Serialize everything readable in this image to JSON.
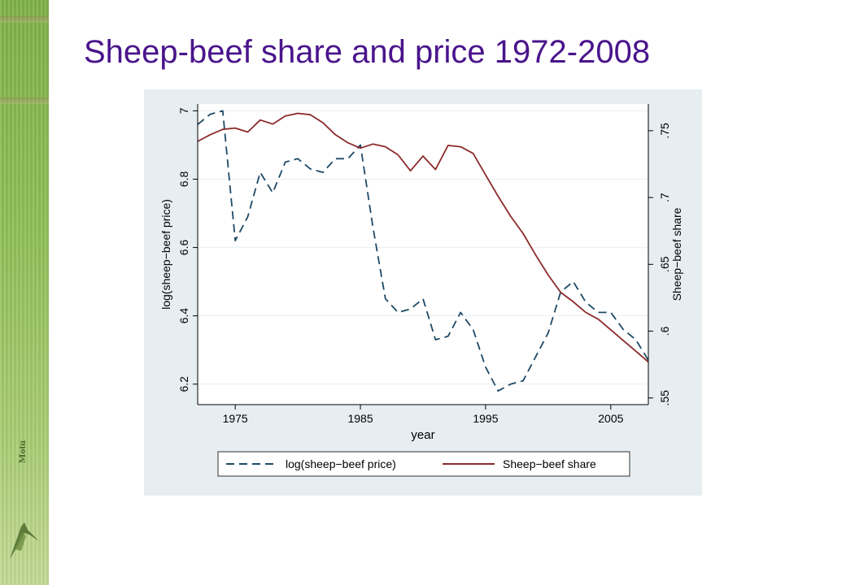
{
  "slide": {
    "title": "Sheep-beef share and price 1972-2008"
  },
  "logo": {
    "text": "Motu"
  },
  "colors": {
    "title": "#4a148c",
    "panel_bg": "#e6eef2",
    "price_line": "#1e4a66",
    "share_line": "#8b2a2a",
    "grid": "#f3f6f8"
  },
  "chart_data": {
    "type": "line",
    "xlabel": "year",
    "ylabel_left": "log(sheep−beef price)",
    "ylabel_right": "Sheep−beef share",
    "xlim": [
      1972,
      2008
    ],
    "ylim_left": [
      6.14,
      7.02
    ],
    "ylim_right": [
      0.545,
      0.77
    ],
    "x_ticks": [
      1975,
      1985,
      1995,
      2005
    ],
    "x_tick_labels": [
      "1975",
      "1985",
      "1995",
      "2005"
    ],
    "y_left_ticks": [
      6.2,
      6.4,
      6.6,
      6.8,
      7.0
    ],
    "y_left_tick_labels": [
      "6.2",
      "6.4",
      "6.6",
      "6.8",
      "7"
    ],
    "y_right_ticks": [
      0.55,
      0.6,
      0.65,
      0.7,
      0.75
    ],
    "y_right_tick_labels": [
      ".55",
      ".6",
      ".65",
      ".7",
      ".75"
    ],
    "grid": true,
    "legend_position": "bottom",
    "series": [
      {
        "name": "log(sheep−beef price)",
        "axis": "left",
        "style": "dashed",
        "x": [
          1972,
          1973,
          1974,
          1975,
          1976,
          1977,
          1978,
          1979,
          1980,
          1981,
          1982,
          1983,
          1984,
          1985,
          1986,
          1987,
          1988,
          1989,
          1990,
          1991,
          1992,
          1993,
          1994,
          1995,
          1996,
          1997,
          1998,
          1999,
          2000,
          2001,
          2002,
          2003,
          2004,
          2005,
          2006,
          2007,
          2008
        ],
        "values": [
          6.96,
          6.99,
          7.0,
          6.62,
          6.69,
          6.82,
          6.76,
          6.85,
          6.86,
          6.83,
          6.82,
          6.86,
          6.86,
          6.9,
          6.66,
          6.45,
          6.41,
          6.42,
          6.45,
          6.33,
          6.34,
          6.41,
          6.36,
          6.25,
          6.18,
          6.2,
          6.21,
          6.28,
          6.35,
          6.47,
          6.5,
          6.44,
          6.41,
          6.41,
          6.36,
          6.33,
          6.27
        ]
      },
      {
        "name": "Sheep−beef share",
        "axis": "right",
        "style": "solid",
        "x": [
          1972,
          1973,
          1974,
          1975,
          1976,
          1977,
          1978,
          1979,
          1980,
          1981,
          1982,
          1983,
          1984,
          1985,
          1986,
          1987,
          1988,
          1989,
          1990,
          1991,
          1992,
          1993,
          1994,
          1995,
          1996,
          1997,
          1998,
          1999,
          2000,
          2001,
          2002,
          2003,
          2004,
          2005,
          2006,
          2007,
          2008
        ],
        "values": [
          0.742,
          0.747,
          0.751,
          0.752,
          0.749,
          0.758,
          0.755,
          0.761,
          0.763,
          0.762,
          0.756,
          0.747,
          0.741,
          0.737,
          0.74,
          0.738,
          0.732,
          0.72,
          0.731,
          0.721,
          0.739,
          0.738,
          0.733,
          0.717,
          0.701,
          0.686,
          0.673,
          0.657,
          0.642,
          0.629,
          0.622,
          0.614,
          0.609,
          0.601,
          0.593,
          0.585,
          0.577
        ]
      }
    ]
  }
}
